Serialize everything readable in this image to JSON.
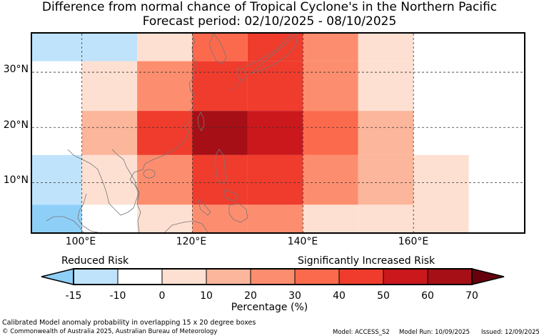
{
  "title": {
    "line1": "Difference from normal chance of Tropical Cyclone's in the Northern Pacific",
    "line2": "Forecast period: 02/10/2025 - 08/10/2025"
  },
  "map": {
    "lat_labels": [
      "30°N",
      "20°N",
      "10°N"
    ],
    "lon_labels": [
      "100°E",
      "120°E",
      "140°E",
      "160°E"
    ],
    "lon_range": [
      91,
      180
    ],
    "lat_range": [
      1,
      37
    ],
    "grid_lons": [
      100,
      120,
      140,
      160
    ],
    "grid_lats": [
      30,
      20,
      10
    ],
    "cells": [
      {
        "lon": 90,
        "lat": 32.5,
        "value": -10,
        "color": "#bfe3fb"
      },
      {
        "lon": 100,
        "lat": 32.5,
        "value": -10,
        "color": "#bfe3fb"
      },
      {
        "lon": 110,
        "lat": 32.5,
        "value": 5,
        "color": "#fee0d2"
      },
      {
        "lon": 120,
        "lat": 32.5,
        "value": 35,
        "color": "#fc6a4d"
      },
      {
        "lon": 130,
        "lat": 32.5,
        "value": 45,
        "color": "#ef3c2d"
      },
      {
        "lon": 140,
        "lat": 32.5,
        "value": 25,
        "color": "#fc8e6f"
      },
      {
        "lon": 150,
        "lat": 32.5,
        "value": 5,
        "color": "#fee0d2"
      },
      {
        "lon": 100,
        "lat": 27.5,
        "value": 5,
        "color": "#fee0d2"
      },
      {
        "lon": 110,
        "lat": 27.5,
        "value": 25,
        "color": "#fc8e6f"
      },
      {
        "lon": 120,
        "lat": 27.5,
        "value": 45,
        "color": "#ef3c2d"
      },
      {
        "lon": 130,
        "lat": 27.5,
        "value": 45,
        "color": "#ef3c2d"
      },
      {
        "lon": 140,
        "lat": 27.5,
        "value": 25,
        "color": "#fc8e6f"
      },
      {
        "lon": 150,
        "lat": 27.5,
        "value": 5,
        "color": "#fee0d2"
      },
      {
        "lon": 100,
        "lat": 17.5,
        "value": 15,
        "color": "#fcb69b"
      },
      {
        "lon": 110,
        "lat": 17.5,
        "value": 45,
        "color": "#ef3c2d"
      },
      {
        "lon": 120,
        "lat": 17.5,
        "value": 65,
        "color": "#a50f15"
      },
      {
        "lon": 130,
        "lat": 17.5,
        "value": 55,
        "color": "#cb181d"
      },
      {
        "lon": 140,
        "lat": 17.5,
        "value": 35,
        "color": "#fc6a4d"
      },
      {
        "lon": 150,
        "lat": 17.5,
        "value": 15,
        "color": "#fcb69b"
      },
      {
        "lon": 90,
        "lat": 12.5,
        "value": -10,
        "color": "#bfe3fb"
      },
      {
        "lon": 100,
        "lat": 12.5,
        "value": 5,
        "color": "#fee0d2"
      },
      {
        "lon": 110,
        "lat": 12.5,
        "value": 25,
        "color": "#fc8e6f"
      },
      {
        "lon": 120,
        "lat": 12.5,
        "value": 45,
        "color": "#ef3c2d"
      },
      {
        "lon": 130,
        "lat": 12.5,
        "value": 45,
        "color": "#ef3c2d"
      },
      {
        "lon": 140,
        "lat": 12.5,
        "value": 25,
        "color": "#fc8e6f"
      },
      {
        "lon": 150,
        "lat": 12.5,
        "value": 15,
        "color": "#fcb69b"
      },
      {
        "lon": 160,
        "lat": 12.5,
        "value": 5,
        "color": "#fee0d2"
      },
      {
        "lon": 90,
        "lat": 2.5,
        "value": -15,
        "color": "#8ecff8"
      },
      {
        "lon": 110,
        "lat": 2.5,
        "value": 5,
        "color": "#fee0d2"
      },
      {
        "lon": 120,
        "lat": 2.5,
        "value": 25,
        "color": "#fc8e6f"
      },
      {
        "lon": 130,
        "lat": 2.5,
        "value": 25,
        "color": "#fc8e6f"
      },
      {
        "lon": 140,
        "lat": 2.5,
        "value": 5,
        "color": "#fee0d2"
      },
      {
        "lon": 150,
        "lat": 2.5,
        "value": 5,
        "color": "#fee0d2"
      },
      {
        "lon": 160,
        "lat": 2.5,
        "value": 5,
        "color": "#fee0d2"
      }
    ],
    "coastline_color": "#808080",
    "land_outline_color": "#555555"
  },
  "legend": {
    "reduced_label": "Reduced Risk",
    "increased_label": "Significantly Increased Risk",
    "ticks": [
      "-15",
      "-10",
      "0",
      "10",
      "20",
      "30",
      "40",
      "50",
      "60",
      "70"
    ],
    "segment_colors": [
      "#bfe3fb",
      "#ffffff",
      "#fee0d2",
      "#fcb69b",
      "#fc8e6f",
      "#fc6a4d",
      "#ef3c2d",
      "#cb181d",
      "#a50f15"
    ],
    "under_color": "#8ecff8",
    "over_color": "#67000d",
    "axis_label": "Percentage (%)"
  },
  "footer": {
    "note": "Calibrated Model anomaly probability in overlapping 15 x 20 degree boxes",
    "copyright": "© Commonwealth of Australia 2025, Australian Bureau of Meteorology",
    "model": "Model: ACCESS_S2",
    "model_run": "Model Run: 10/09/2025",
    "issued": "Issued: 12/09/2025"
  }
}
